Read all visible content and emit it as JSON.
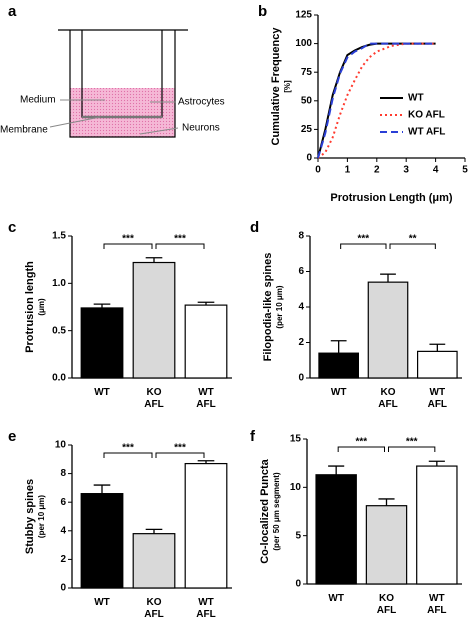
{
  "diagram": {
    "panel": "a",
    "labels": [
      "Medium",
      "Astrocytes",
      "Membrane",
      "Neurons"
    ]
  },
  "chart_data": [
    {
      "type": "line",
      "panel": "b",
      "xlabel": "Protrusion Length (μm)",
      "ylabel": "Cumulative Frequency",
      "ylabel_unit": "[%]",
      "x": [
        0,
        0.25,
        0.5,
        0.75,
        1,
        1.25,
        1.5,
        1.75,
        2,
        2.5,
        3,
        4
      ],
      "series": [
        {
          "name": "WT",
          "color": "#000000",
          "linestyle": "solid",
          "values": [
            0,
            25,
            55,
            75,
            90,
            94,
            97,
            99,
            100,
            100,
            100,
            100
          ]
        },
        {
          "name": "KO AFL",
          "color": "#ff3b2f",
          "linestyle": "dotted",
          "values": [
            0,
            5,
            18,
            38,
            55,
            68,
            80,
            88,
            93,
            98,
            100,
            100
          ]
        },
        {
          "name": "WT AFL",
          "color": "#2a3fd6",
          "linestyle": "dashed",
          "values": [
            0,
            22,
            52,
            74,
            88,
            93,
            96,
            100,
            100,
            100,
            100,
            100
          ]
        }
      ],
      "xlim": [
        0,
        5
      ],
      "xticks": [
        0,
        1,
        2,
        3,
        4,
        5
      ],
      "ylim": [
        0,
        125
      ],
      "yticks": [
        0,
        25,
        50,
        75,
        100,
        125
      ],
      "legend": "right"
    },
    {
      "type": "bar",
      "panel": "c",
      "ylabel": "Protrusion length",
      "ylabel_unit": "(μm)",
      "categories": [
        "WT",
        "KO\nAFL",
        "WT\nAFL"
      ],
      "values": [
        0.74,
        1.22,
        0.77
      ],
      "errors": [
        0.04,
        0.05,
        0.03
      ],
      "colors": [
        "#000000",
        "#d9d9d9",
        "#ffffff"
      ],
      "ylim": [
        0,
        1.5
      ],
      "yticks": [
        {
          "value": 0,
          "label": "0.0"
        },
        0.5,
        {
          "value": 1,
          "label": "1.0"
        },
        1.5
      ],
      "significance": [
        {
          "from": 0,
          "to": 1,
          "label": "***"
        },
        {
          "from": 1,
          "to": 2,
          "label": "***"
        }
      ]
    },
    {
      "type": "bar",
      "panel": "d",
      "ylabel": "Filopodia-like spines",
      "ylabel_unit": "(per 10 μm)",
      "categories": [
        "WT",
        "KO\nAFL",
        "WT\nAFL"
      ],
      "values": [
        1.4,
        5.4,
        1.5
      ],
      "errors": [
        0.7,
        0.45,
        0.4
      ],
      "colors": [
        "#000000",
        "#d9d9d9",
        "#ffffff"
      ],
      "ylim": [
        0,
        8
      ],
      "yticks": [
        0,
        2,
        4,
        6,
        8
      ],
      "significance": [
        {
          "from": 0,
          "to": 1,
          "label": "***"
        },
        {
          "from": 1,
          "to": 2,
          "label": "**"
        }
      ]
    },
    {
      "type": "bar",
      "panel": "e",
      "ylabel": "Stubby spines",
      "ylabel_unit": "(per 10 μm)",
      "categories": [
        "WT",
        "KO\nAFL",
        "WT\nAFL"
      ],
      "values": [
        6.6,
        3.8,
        8.7
      ],
      "errors": [
        0.6,
        0.3,
        0.2
      ],
      "colors": [
        "#000000",
        "#d9d9d9",
        "#ffffff"
      ],
      "ylim": [
        0,
        10
      ],
      "yticks": [
        0,
        2,
        4,
        6,
        8,
        10
      ],
      "significance": [
        {
          "from": 0,
          "to": 1,
          "label": "***"
        },
        {
          "from": 1,
          "to": 2,
          "label": "***"
        }
      ]
    },
    {
      "type": "bar",
      "panel": "f",
      "ylabel": "Co-localized Puncta",
      "ylabel_unit": "(per 50 μm segment)",
      "categories": [
        "WT",
        "KO\nAFL",
        "WT\nAFL"
      ],
      "values": [
        11.3,
        8.1,
        12.2
      ],
      "errors": [
        0.9,
        0.7,
        0.5
      ],
      "colors": [
        "#000000",
        "#d9d9d9",
        "#ffffff"
      ],
      "ylim": [
        0,
        15
      ],
      "yticks": [
        0,
        5,
        10,
        15
      ],
      "significance": [
        {
          "from": 0,
          "to": 1,
          "label": "***"
        },
        {
          "from": 1,
          "to": 2,
          "label": "***"
        }
      ]
    }
  ]
}
